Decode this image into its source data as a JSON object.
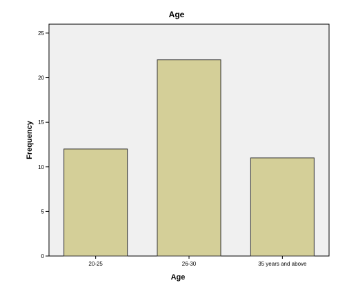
{
  "chart_data": {
    "type": "bar",
    "title": "Age",
    "xlabel": "Age",
    "ylabel": "Frequency",
    "categories": [
      "20-25",
      "26-30",
      "35 years and above"
    ],
    "values": [
      12,
      22,
      11
    ],
    "ylim": [
      0,
      26
    ],
    "yticks": [
      0,
      5,
      10,
      15,
      20,
      25
    ],
    "grid": false,
    "colors": {
      "bar_fill": "#d4cf98",
      "bar_stroke": "#333333",
      "plot_background": "#f0f0f0"
    }
  }
}
